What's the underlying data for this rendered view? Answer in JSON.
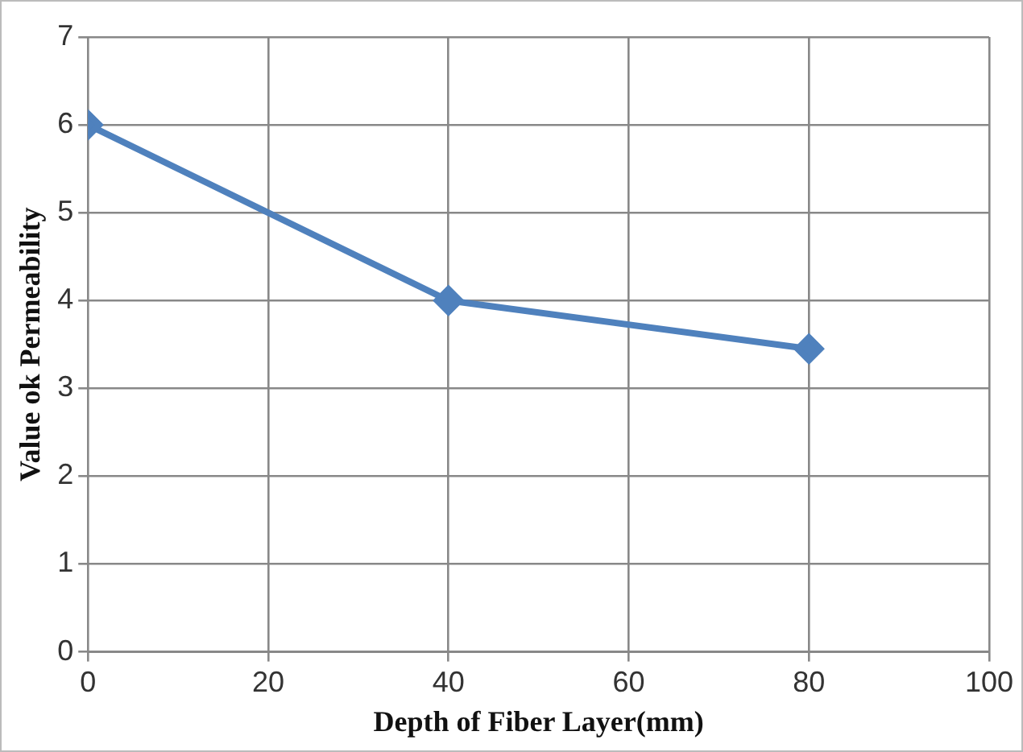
{
  "chart_data": {
    "type": "line",
    "xlabel": "Depth of Fiber Layer(mm)",
    "ylabel": "Value ok Permeability",
    "x": [
      0,
      40,
      80
    ],
    "series": [
      {
        "color": "#4f81bd",
        "values": [
          6,
          4,
          3.45
        ]
      }
    ],
    "xlim": [
      0,
      100
    ],
    "xticks": [
      0,
      20,
      40,
      60,
      80,
      100
    ],
    "ylim": [
      0,
      7
    ],
    "yticks": [
      0,
      1,
      2,
      3,
      4,
      5,
      6,
      7
    ],
    "grid": true,
    "legend": false,
    "marker": "diamond",
    "line_style": "solid"
  }
}
